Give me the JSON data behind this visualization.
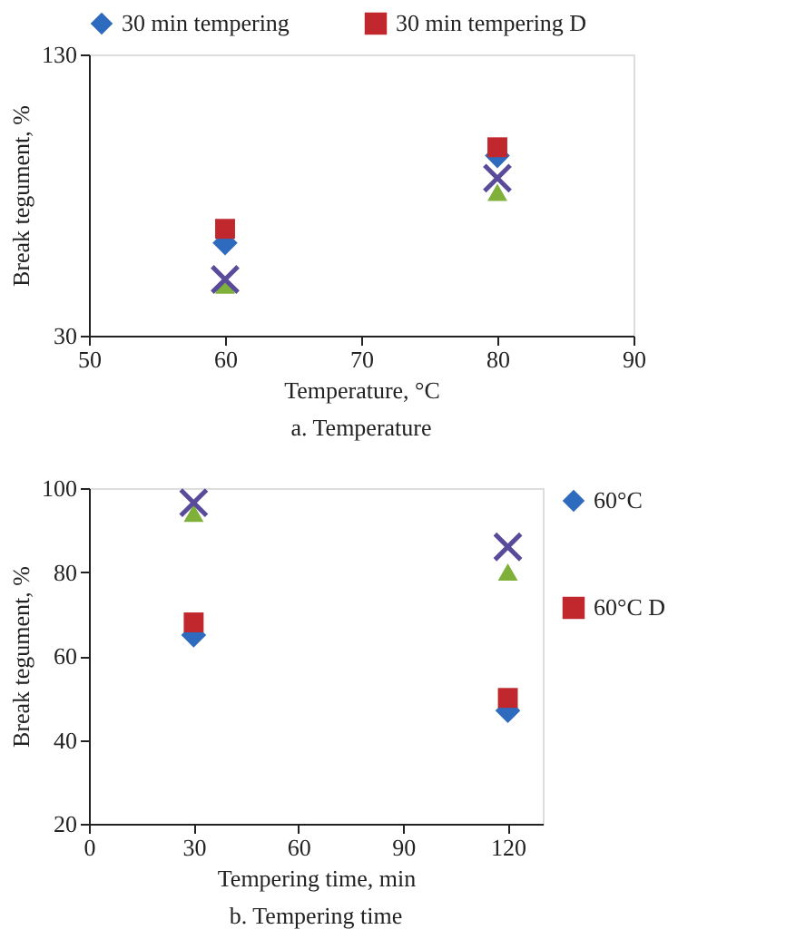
{
  "chart_data": [
    {
      "type": "scatter",
      "xlabel": "Temperature, °C",
      "ylabel": "Break tegument, %",
      "annotations": [
        "a. Temperature"
      ],
      "x": [
        60,
        80
      ],
      "xlim": [
        50,
        90
      ],
      "xticks": [
        50,
        60,
        70,
        80,
        90
      ],
      "ylim": [
        30,
        130
      ],
      "yticks": [
        30,
        130
      ],
      "legend": "top",
      "series": [
        {
          "name": "30 min tempering",
          "color": "#2e6bbf",
          "marker": "diamond",
          "values": [
            63,
            94
          ]
        },
        {
          "name": "30 min tempering D",
          "color": "#c0282d",
          "marker": "square",
          "values": [
            68,
            97
          ]
        },
        {
          "color": "#7fb03a",
          "marker": "triangle",
          "values": [
            48,
            81
          ]
        },
        {
          "color": "#5a4a9a",
          "marker": "cross",
          "values": [
            50,
            86
          ]
        }
      ]
    },
    {
      "type": "scatter",
      "xlabel": "Tempering time, min",
      "ylabel": "Break tegument, %",
      "annotations": [
        "b. Tempering time"
      ],
      "x": [
        30,
        120
      ],
      "xlim": [
        0,
        130
      ],
      "xticks": [
        0,
        30,
        60,
        90,
        120
      ],
      "ylim": [
        20,
        100
      ],
      "yticks": [
        20,
        40,
        60,
        80,
        100
      ],
      "legend": "right",
      "series": [
        {
          "name": "60°C",
          "color": "#2e6bbf",
          "marker": "diamond",
          "values": [
            65,
            47
          ]
        },
        {
          "name": "60°C D",
          "color": "#c0282d",
          "marker": "square",
          "values": [
            68,
            50
          ]
        },
        {
          "color": "#7fb03a",
          "marker": "triangle",
          "values": [
            94,
            80
          ]
        },
        {
          "color": "#5a4a9a",
          "marker": "cross",
          "values": [
            96.5,
            86
          ]
        }
      ]
    }
  ]
}
